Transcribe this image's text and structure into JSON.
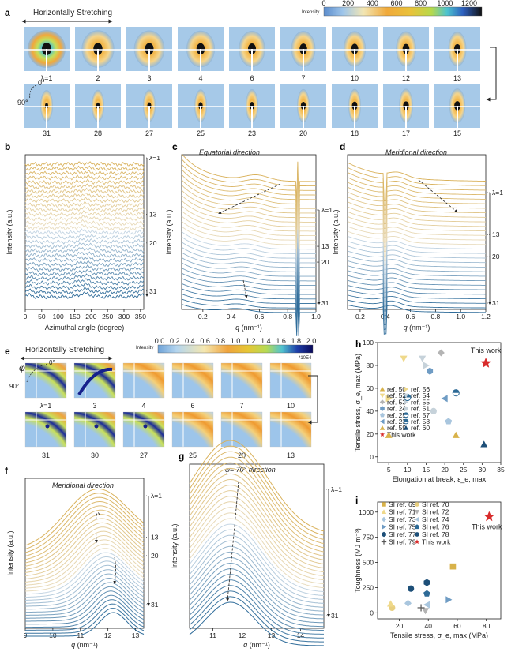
{
  "panel_a": {
    "label": "a",
    "stretch_label": "Horizontally Stretching",
    "intensity_label": "Intensity",
    "colorbar_ticks": [
      "0",
      "200",
      "400",
      "600",
      "800",
      "1000",
      "1200"
    ],
    "angle_0": "0°",
    "angle_90": "90°",
    "row1": [
      "λ=1",
      "2",
      "3",
      "4",
      "6",
      "7",
      "10",
      "12",
      "13"
    ],
    "row2": [
      "31",
      "28",
      "27",
      "25",
      "23",
      "20",
      "18",
      "17",
      "15"
    ]
  },
  "panel_e": {
    "label": "e",
    "stretch_label": "Horizontally Stretching",
    "intensity_label": "Intensity",
    "colorbar_ticks": [
      "0.0",
      "0.2",
      "0.4",
      "0.6",
      "0.8",
      "1.0",
      "1.2",
      "1.4",
      "1.6",
      "1.8",
      "2.0"
    ],
    "colorbar_unit": "*10E4",
    "phi": "φ",
    "angle_0": "0°",
    "angle_90": "90°",
    "row1": [
      "λ=1",
      "3",
      "4",
      "6",
      "7",
      "10"
    ],
    "row2": [
      "31",
      "30",
      "27",
      "25",
      "20",
      "13"
    ]
  },
  "chart_data": [
    {
      "panel": "b",
      "type": "line",
      "xlabel": "Azimuthal angle (degree)",
      "ylabel": "Intensity (a.u.)",
      "xlim": [
        0,
        360
      ],
      "xticks": [
        "0",
        "50",
        "100",
        "150",
        "200",
        "250",
        "300",
        "350"
      ],
      "stretch_labels": [
        "λ=1",
        "13",
        "20",
        "31"
      ]
    },
    {
      "panel": "c",
      "type": "line",
      "annotation": "Equatorial direction",
      "xlabel": "q (nm⁻¹)",
      "ylabel": "Intensity (a.u.)",
      "xlim": [
        0.05,
        1.0
      ],
      "xticks": [
        "0.2",
        "0.4",
        "0.6",
        "0.8",
        "1.0"
      ],
      "stretch_labels": [
        "λ=1",
        "13",
        "20",
        "31"
      ]
    },
    {
      "panel": "d",
      "type": "line",
      "annotation": "Meridional direction",
      "xlabel": "q (nm⁻¹)",
      "ylabel": "Intensity (a.u.)",
      "xlim": [
        0.1,
        1.2
      ],
      "xticks": [
        "0.2",
        "0.4",
        "0.6",
        "0.8",
        "1.0",
        "1.2"
      ],
      "stretch_labels": [
        "λ=1",
        "13",
        "20",
        "31"
      ]
    },
    {
      "panel": "f",
      "type": "line",
      "annotation": "Meridional direction",
      "xlabel": "q (nm⁻¹)",
      "ylabel": "Intensity (a.u.)",
      "xlim": [
        9,
        13.3
      ],
      "xticks": [
        "9",
        "10",
        "11",
        "12",
        "13"
      ],
      "stretch_labels": [
        "λ=1",
        "13",
        "20",
        "31"
      ]
    },
    {
      "panel": "g",
      "type": "line",
      "annotation": "φ= 70° direction",
      "xlabel": "q (nm⁻¹)",
      "ylabel": "Intensity (a.u.)",
      "xlim": [
        10.2,
        14.8
      ],
      "xticks": [
        "11",
        "12",
        "13",
        "14"
      ],
      "stretch_labels": [
        "λ=1",
        "31"
      ]
    },
    {
      "panel": "h",
      "type": "scatter",
      "xlabel": "Elongation at break, ε_e, max",
      "ylabel": "Tensile stress, σ_e, max (MPa)",
      "xlim": [
        2,
        35
      ],
      "ylim": [
        -5,
        100
      ],
      "xticks": [
        "5",
        "10",
        "15",
        "20",
        "25",
        "30",
        "35"
      ],
      "yticks": [
        "0",
        "20",
        "40",
        "60",
        "80",
        "100"
      ],
      "highlight": "This work",
      "legend": [
        "ref. 50",
        "ref. 56",
        "ref. 52",
        "ref. 54",
        "ref. 53",
        "ref. 55",
        "ref. 24",
        "ref. 51",
        "ref. 25",
        "ref. 57",
        "ref. 23",
        "ref. 58",
        "ref. 59",
        "ref. 60",
        "This work"
      ],
      "points": [
        {
          "label": "ref. 50",
          "x": 5,
          "y": 19,
          "color": "#d8b24a",
          "shape": "tri"
        },
        {
          "label": "ref. 56",
          "x": 5,
          "y": 51,
          "color": "#efd98b",
          "shape": "tri-r"
        },
        {
          "label": "ref. 52",
          "x": 9,
          "y": 86,
          "color": "#efd98b",
          "shape": "tri-d"
        },
        {
          "label": "ref. 54",
          "x": 14,
          "y": 86,
          "color": "#c6d2da",
          "shape": "tri-d"
        },
        {
          "label": "ref. 53",
          "x": 19,
          "y": 91,
          "color": "#b4b4b4",
          "shape": "diamond"
        },
        {
          "label": "ref. 55",
          "x": 15,
          "y": 80,
          "color": "#c6d2da",
          "shape": "tri-r"
        },
        {
          "label": "ref. 24",
          "x": 16,
          "y": 75,
          "color": "#6f9cc4",
          "shape": "hex"
        },
        {
          "label": "ref. 51",
          "x": 17,
          "y": 40,
          "color": "#c6d2da",
          "shape": "circle"
        },
        {
          "label": "ref. 25",
          "x": 21,
          "y": 31,
          "color": "#a9c6de",
          "shape": "pent"
        },
        {
          "label": "ref. 57",
          "x": 10,
          "y": 52,
          "color": "#2d6a96",
          "shape": "half"
        },
        {
          "label": "ref. 23",
          "x": 20,
          "y": 51,
          "color": "#6f9cc4",
          "shape": "tri-l"
        },
        {
          "label": "ref. 58",
          "x": 23,
          "y": 56,
          "color": "#2d6a96",
          "shape": "half"
        },
        {
          "label": "ref. 59",
          "x": 23,
          "y": 19,
          "color": "#d8b24a",
          "shape": "tri"
        },
        {
          "label": "ref. 60",
          "x": 30.5,
          "y": 11,
          "color": "#1d4f78",
          "shape": "tri"
        },
        {
          "label": "This work",
          "x": 31,
          "y": 82,
          "color": "#d82b2b",
          "shape": "star"
        }
      ]
    },
    {
      "panel": "i",
      "type": "scatter",
      "xlabel": "Tensile stress, σ_e, max (MPa)",
      "ylabel": "Toughness (MJ m⁻³)",
      "xlim": [
        5,
        90
      ],
      "ylim": [
        -60,
        1100
      ],
      "xticks": [
        "20",
        "40",
        "60",
        "80"
      ],
      "yticks": [
        "0",
        "250",
        "500",
        "750",
        "1000"
      ],
      "highlight": "This work",
      "legend": [
        "SI ref. 69",
        "SI ref. 70",
        "SI ref. 71",
        "SI ref. 72",
        "SI ref. 73",
        "SI ref. 74",
        "SI ref. 75",
        "SI ref. 76",
        "SI ref. 77",
        "SI ref. 78",
        "SI ref. 79",
        "This work"
      ],
      "points": [
        {
          "label": "SI ref. 69",
          "x": 57,
          "y": 460,
          "color": "#d8b24a",
          "shape": "square"
        },
        {
          "label": "SI ref. 70",
          "x": 15,
          "y": 50,
          "color": "#e8cf80",
          "shape": "circle"
        },
        {
          "label": "SI ref. 71",
          "x": 14,
          "y": 90,
          "color": "#efd98b",
          "shape": "tri"
        },
        {
          "label": "SI ref. 72",
          "x": 38,
          "y": 20,
          "color": "#b4b4b4",
          "shape": "tri-d"
        },
        {
          "label": "SI ref. 73",
          "x": 26,
          "y": 95,
          "color": "#a9c6de",
          "shape": "diamond"
        },
        {
          "label": "SI ref. 74",
          "x": 39,
          "y": 80,
          "color": "#a9c6de",
          "shape": "tri-l"
        },
        {
          "label": "SI ref. 75",
          "x": 54,
          "y": 130,
          "color": "#6f9cc4",
          "shape": "tri-r"
        },
        {
          "label": "SI ref. 76",
          "x": 39,
          "y": 190,
          "color": "#2d6a96",
          "shape": "pent"
        },
        {
          "label": "SI ref. 77",
          "x": 39,
          "y": 300,
          "color": "#1d4f78",
          "shape": "hex"
        },
        {
          "label": "SI ref. 78",
          "x": 28,
          "y": 240,
          "color": "#1d4f78",
          "shape": "circle"
        },
        {
          "label": "SI ref. 79",
          "x": 35,
          "y": 50,
          "color": "#555555",
          "shape": "plus"
        },
        {
          "label": "This work",
          "x": 82,
          "y": 955,
          "color": "#d82b2b",
          "shape": "star"
        }
      ]
    }
  ]
}
